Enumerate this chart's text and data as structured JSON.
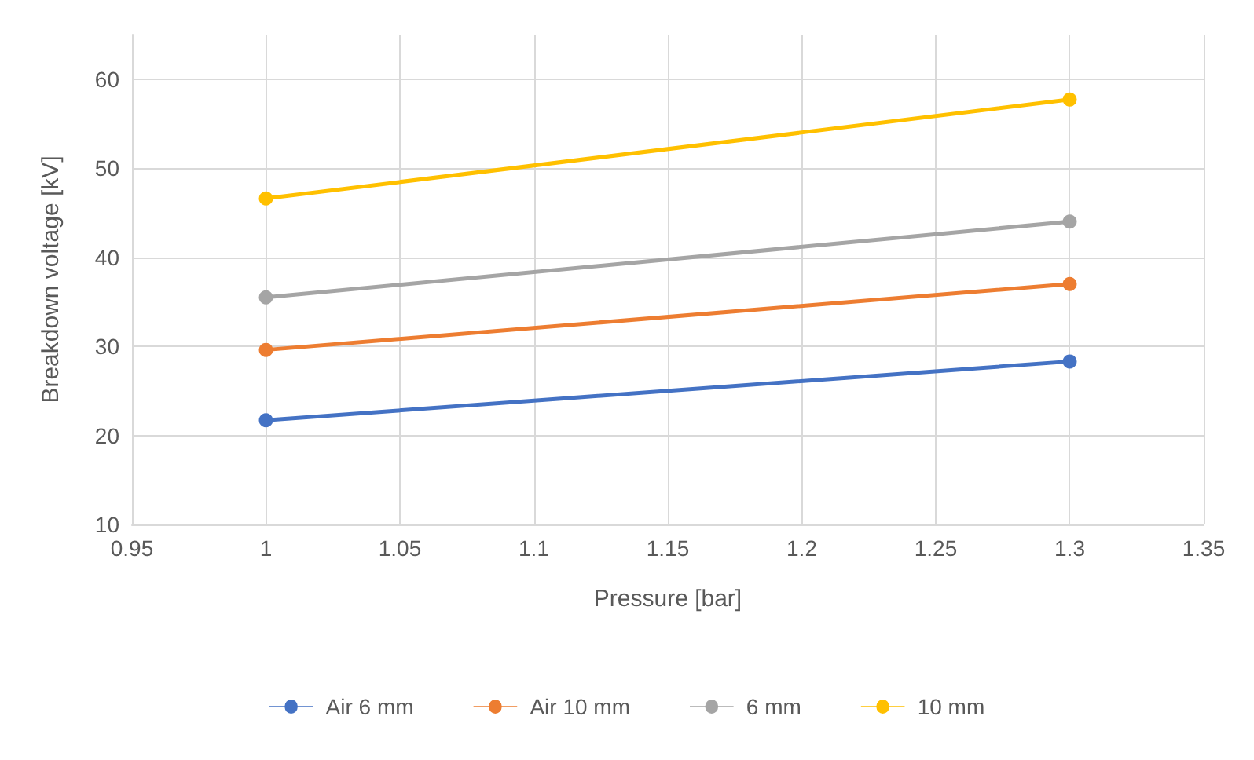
{
  "chart_data": {
    "type": "line",
    "xlabel": "Pressure [bar]",
    "ylabel": "Breakdown voltage [kV]",
    "x": [
      1,
      1.3
    ],
    "xlim": [
      0.95,
      1.35
    ],
    "xticks": [
      0.95,
      1,
      1.05,
      1.1,
      1.15,
      1.2,
      1.25,
      1.3,
      1.35
    ],
    "ylim": [
      10,
      65
    ],
    "yticks": [
      10,
      20,
      30,
      40,
      50,
      60
    ],
    "grid": true,
    "legend": "bottom",
    "marker": "circle",
    "line_style": "solid",
    "series": [
      {
        "name": "Air 6 mm",
        "color": "#4472c4",
        "values": [
          21.7,
          28.3
        ]
      },
      {
        "name": "Air 10 mm",
        "color": "#ed7d31",
        "values": [
          29.6,
          37.0
        ]
      },
      {
        "name": "6 mm",
        "color": "#a5a5a5",
        "values": [
          35.5,
          44.0
        ]
      },
      {
        "name": "10 mm",
        "color": "#ffc000",
        "values": [
          46.6,
          57.7
        ]
      }
    ]
  }
}
